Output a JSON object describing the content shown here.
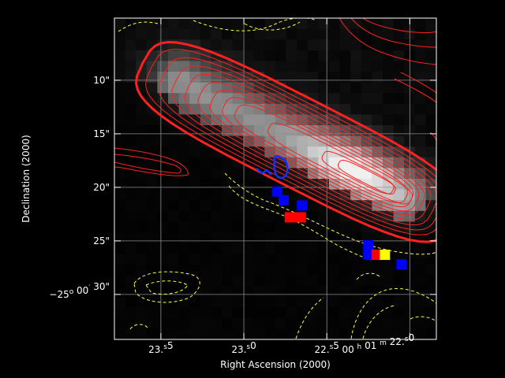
{
  "chart_data": {
    "type": "heatmap",
    "title": "",
    "xlabel": "Right Ascension (2000)",
    "ylabel": "Declination (2000)",
    "x_ticks": [
      {
        "value": 23.5,
        "h": "",
        "m": "",
        "s": "23.5",
        "unit": "s"
      },
      {
        "value": 23.0,
        "h": "",
        "m": "",
        "s": "23.0",
        "unit": "s"
      },
      {
        "value": 22.5,
        "h": "",
        "m": "",
        "s": "22.5",
        "unit": "s"
      },
      {
        "value": 22.0,
        "h": "00",
        "m": "01",
        "s": "22.0",
        "unit": "s"
      }
    ],
    "xlim": [
      23.78,
      21.84
    ],
    "y_ticks": [
      {
        "value": 10,
        "deg": "",
        "min": "",
        "sec": "10\""
      },
      {
        "value": 15,
        "deg": "",
        "min": "",
        "sec": "15\""
      },
      {
        "value": 20,
        "deg": "",
        "min": "",
        "sec": "20\""
      },
      {
        "value": 25,
        "deg": "",
        "min": "",
        "sec": "25\""
      },
      {
        "value": 30,
        "deg": "−25",
        "min": "00",
        "sec": "30\""
      }
    ],
    "ylim": [
      4.2,
      34.2
    ],
    "grid": true,
    "colors": {
      "background": "#000000",
      "grid": "#9a9a9a",
      "frame": "#ffffff",
      "contour_primary": "#ff2020",
      "contour_secondary": "#ffff44",
      "marker_blue": "#0000ff",
      "marker_red": "#ff0000",
      "marker_yellow": "#ffff00"
    },
    "markers": [
      {
        "color": "blue",
        "ra": 22.8,
        "dec": 20.4
      },
      {
        "color": "blue",
        "ra": 22.76,
        "dec": 21.2
      },
      {
        "color": "blue",
        "ra": 22.65,
        "dec": 21.7
      },
      {
        "color": "red",
        "ra": 22.69,
        "dec": 22.8
      },
      {
        "color": "blue",
        "ra": 22.25,
        "dec": 25.4
      },
      {
        "color": "blue",
        "ra": 22.25,
        "dec": 26.3
      },
      {
        "color": "red",
        "ra": 22.2,
        "dec": 26.3
      },
      {
        "color": "yellow",
        "ra": 22.15,
        "dec": 26.3
      },
      {
        "color": "blue",
        "ra": 22.05,
        "dec": 27.2
      }
    ]
  }
}
